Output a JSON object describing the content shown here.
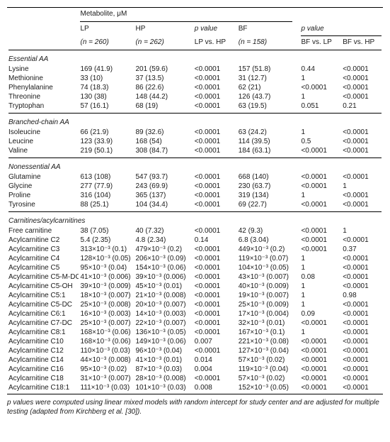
{
  "header": {
    "metabolite_label": "Metabolite, μM",
    "lp_label": "LP",
    "lp_n": "(n = 260)",
    "hp_label": "HP",
    "hp_n": "(n = 262)",
    "p1_a": "p value",
    "p1_b": "LP vs. HP",
    "bf_label": "BF",
    "bf_n": "(n = 158)",
    "p2_a": "p value",
    "p2_b": "BF vs. LP",
    "p2_c": "BF vs. HP"
  },
  "sections": [
    {
      "title": "Essential AA",
      "rows": [
        {
          "name": "Lysine",
          "lp": "169 (41.9)",
          "hp": "201 (59.6)",
          "p1": "<0.0001",
          "bf": "157 (51.8)",
          "p2": "0.44",
          "p3": "<0.0001"
        },
        {
          "name": "Methionine",
          "lp": "33 (10)",
          "hp": "37 (13.5)",
          "p1": "<0.0001",
          "bf": "31 (12.7)",
          "p2": "1",
          "p3": "<0.0001"
        },
        {
          "name": "Phenylalanine",
          "lp": "74 (18.3)",
          "hp": "86 (22.6)",
          "p1": "<0.0001",
          "bf": "62 (21)",
          "p2": "<0.0001",
          "p3": "<0.0001"
        },
        {
          "name": "Threonine",
          "lp": "130 (38)",
          "hp": "148 (44.2)",
          "p1": "<0.0001",
          "bf": "126 (43.7)",
          "p2": "1",
          "p3": "<0.0001"
        },
        {
          "name": "Tryptophan",
          "lp": "57 (16.1)",
          "hp": "68 (19)",
          "p1": "<0.0001",
          "bf": "63 (19.5)",
          "p2": "0.051",
          "p3": "0.21"
        }
      ]
    },
    {
      "title": "Branched-chain AA",
      "rows": [
        {
          "name": "Isoleucine",
          "lp": "66 (21.9)",
          "hp": "89 (32.6)",
          "p1": "<0.0001",
          "bf": "63 (24.2)",
          "p2": "1",
          "p3": "<0.0001"
        },
        {
          "name": "Leucine",
          "lp": "123 (33.9)",
          "hp": "168 (54)",
          "p1": "<0.0001",
          "bf": "114 (39.5)",
          "p2": "0.5",
          "p3": "<0.0001"
        },
        {
          "name": "Valine",
          "lp": "219 (50.1)",
          "hp": "308 (84.7)",
          "p1": "<0.0001",
          "bf": "184 (63.1)",
          "p2": "<0.0001",
          "p3": "<0.0001"
        }
      ]
    },
    {
      "title": "Nonessential AA",
      "rows": [
        {
          "name": "Glutamine",
          "lp": "613 (108)",
          "hp": "547 (93.7)",
          "p1": "<0.0001",
          "bf": "668 (140)",
          "p2": "<0.0001",
          "p3": "<0.0001"
        },
        {
          "name": "Glycine",
          "lp": "277 (77.9)",
          "hp": "243 (69.9)",
          "p1": "<0.0001",
          "bf": "230 (63.7)",
          "p2": "<0.0001",
          "p3": "1"
        },
        {
          "name": "Proline",
          "lp": "316 (104)",
          "hp": "365 (137)",
          "p1": "<0.0001",
          "bf": "319 (134)",
          "p2": "1",
          "p3": "<0.0001"
        },
        {
          "name": "Tyrosine",
          "lp": "88 (25.1)",
          "hp": "104 (34.4)",
          "p1": "<0.0001",
          "bf": "69 (22.7)",
          "p2": "<0.0001",
          "p3": "<0.0001"
        }
      ]
    },
    {
      "title": "Carnitines/acylcarnitines",
      "rows": [
        {
          "name": "Free carnitine",
          "lp": "38 (7.05)",
          "hp": "40 (7.32)",
          "p1": "<0.0001",
          "bf": "42 (9.3)",
          "p2": "<0.0001",
          "p3": "1"
        },
        {
          "name": "Acylcarnitine C2",
          "lp": "5.4 (2.35)",
          "hp": "4.8 (2.34)",
          "p1": "0.14",
          "bf": "6.8 (3.04)",
          "p2": "<0.0001",
          "p3": "<0.0001"
        },
        {
          "name": "Acylcarnitine C3",
          "lp": "313×10⁻³ (0.1)",
          "hp": "479×10⁻³ (0.2)",
          "p1": "<0.0001",
          "bf": "449×10⁻³ (0.2)",
          "p2": "<0.0001",
          "p3": "0.37"
        },
        {
          "name": "Acylcarnitine C4",
          "lp": "128×10⁻³ (0.05)",
          "hp": "206×10⁻³ (0.09)",
          "p1": "<0.0001",
          "bf": "119×10⁻³ (0.07)",
          "p2": "1",
          "p3": "<0.0001"
        },
        {
          "name": "Acylcarnitine C5",
          "lp": "95×10⁻³ (0.04)",
          "hp": "154×10⁻³ (0.06)",
          "p1": "<0.0001",
          "bf": "104×10⁻³ (0.05)",
          "p2": "1",
          "p3": "<0.0001"
        },
        {
          "name": "Acylcarnitine C5-M-DC",
          "lp": "41×10⁻³ (0.006)",
          "hp": "39×10⁻³ (0.006)",
          "p1": "<0.0001",
          "bf": "43×10⁻³ (0.007)",
          "p2": "0.08",
          "p3": "<0.0001"
        },
        {
          "name": "Acylcarnitine C5-OH",
          "lp": "39×10⁻³ (0.009)",
          "hp": "45×10⁻³ (0.01)",
          "p1": "<0.0001",
          "bf": "40×10⁻³ (0.009)",
          "p2": "1",
          "p3": "<0.0001"
        },
        {
          "name": "Acylcarnitine C5:1",
          "lp": "18×10⁻³ (0.007)",
          "hp": "21×10⁻³ (0.008)",
          "p1": "<0.0001",
          "bf": "19×10⁻³ (0.007)",
          "p2": "1",
          "p3": "0.98"
        },
        {
          "name": "Acylcarnitine C5-DC",
          "lp": "25×10⁻³ (0.008)",
          "hp": "20×10⁻³ (0.007)",
          "p1": "<0.0001",
          "bf": "25×10⁻³ (0.009)",
          "p2": "1",
          "p3": "<0.0001"
        },
        {
          "name": "Acylcarnitine C6:1",
          "lp": "16×10⁻³ (0.003)",
          "hp": "14×10⁻³ (0.003)",
          "p1": "<0.0001",
          "bf": "17×10⁻³ (0.004)",
          "p2": "0.09",
          "p3": "<0.0001"
        },
        {
          "name": "Acylcarnitine C7-DC",
          "lp": "25×10⁻³ (0.007)",
          "hp": "22×10⁻³ (0.007)",
          "p1": "<0.0001",
          "bf": "32×10⁻³ (0.01)",
          "p2": "<0.0001",
          "p3": "<0.0001"
        },
        {
          "name": "Acylcarnitine C8:1",
          "lp": "168×10⁻³ (0.06)",
          "hp": "136×10⁻³ (0.05)",
          "p1": "<0.0001",
          "bf": "167×10⁻³ (0.1)",
          "p2": "1",
          "p3": "<0.0001"
        },
        {
          "name": "Acylcarnitine C10",
          "lp": "168×10⁻³ (0.06)",
          "hp": "149×10⁻³ (0.06)",
          "p1": "0.007",
          "bf": "221×10⁻³ (0.08)",
          "p2": "<0.0001",
          "p3": "<0.0001"
        },
        {
          "name": "Acylcarnitine C12",
          "lp": "110×10⁻³ (0.03)",
          "hp": "96×10⁻³ (0.04)",
          "p1": "<0.0001",
          "bf": "127×10⁻³ (0.04)",
          "p2": "<0.0001",
          "p3": "<0.0001"
        },
        {
          "name": "Acylcarnitine C14",
          "lp": "44×10⁻³ (0.008)",
          "hp": "41×10⁻³ (0.01)",
          "p1": "0.014",
          "bf": "57×10⁻³ (0.02)",
          "p2": "<0.0001",
          "p3": "<0.0001"
        },
        {
          "name": "Acylcarnitine C16",
          "lp": "95×10⁻³ (0.02)",
          "hp": "87×10⁻³ (0.03)",
          "p1": "0.004",
          "bf": "119×10⁻³ (0.04)",
          "p2": "<0.0001",
          "p3": "<0.0001"
        },
        {
          "name": "Acylcarnitine C18",
          "lp": "31×10⁻³ (0.007)",
          "hp": "28×10⁻³ (0.008)",
          "p1": "<0.0001",
          "bf": "57×10⁻³ (0.02)",
          "p2": "<0.0001",
          "p3": "<0.0001"
        },
        {
          "name": "Acylcarnitine C18:1",
          "lp": "111×10⁻³ (0.03)",
          "hp": "101×10⁻³ (0.03)",
          "p1": "0.008",
          "bf": "152×10⁻³ (0.05)",
          "p2": "<0.0001",
          "p3": "<0.0001"
        }
      ]
    }
  ],
  "footnote": "p values were computed using linear mixed models with random intercept for study center and are adjusted for multiple testing  (adapted from Kirchberg et al. [30])."
}
